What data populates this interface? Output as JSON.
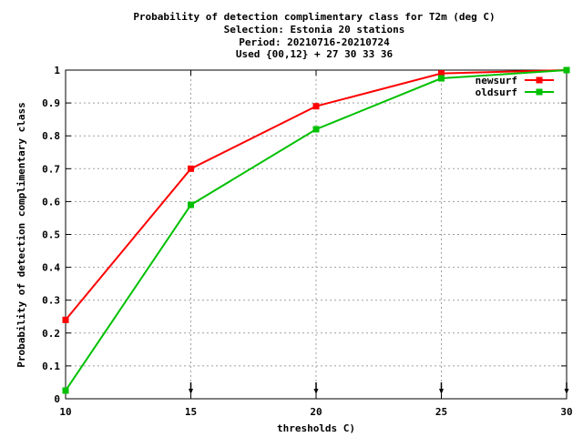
{
  "chart_data": {
    "type": "line",
    "title_lines": [
      "Probability of detection complimentary class  for T2m (deg C)",
      "Selection: Estonia     20 stations",
      "Period: 20210716-20210724",
      "Used {00,12} + 27 30 33 36"
    ],
    "xlabel": "thresholds C)",
    "ylabel": "Probability of detection complimentary class",
    "xlim": [
      10,
      30
    ],
    "ylim": [
      0,
      1
    ],
    "x_ticks": [
      "10",
      "15",
      "20",
      "25",
      "30"
    ],
    "y_ticks": [
      "0",
      "0.1",
      "0.2",
      "0.3",
      "0.4",
      "0.5",
      "0.6",
      "0.7",
      "0.8",
      "0.9",
      "1"
    ],
    "grid": true,
    "legend_position": "top-right",
    "x": [
      10,
      15,
      20,
      25,
      30
    ],
    "series": [
      {
        "name": "newsurf",
        "color": "#ff0000",
        "values": [
          0.24,
          0.7,
          0.89,
          0.99,
          1.0
        ]
      },
      {
        "name": "oldsurf",
        "color": "#00c000",
        "values": [
          0.025,
          0.59,
          0.82,
          0.975,
          1.0
        ]
      }
    ],
    "marker_x": [
      15,
      20,
      25,
      30
    ]
  }
}
